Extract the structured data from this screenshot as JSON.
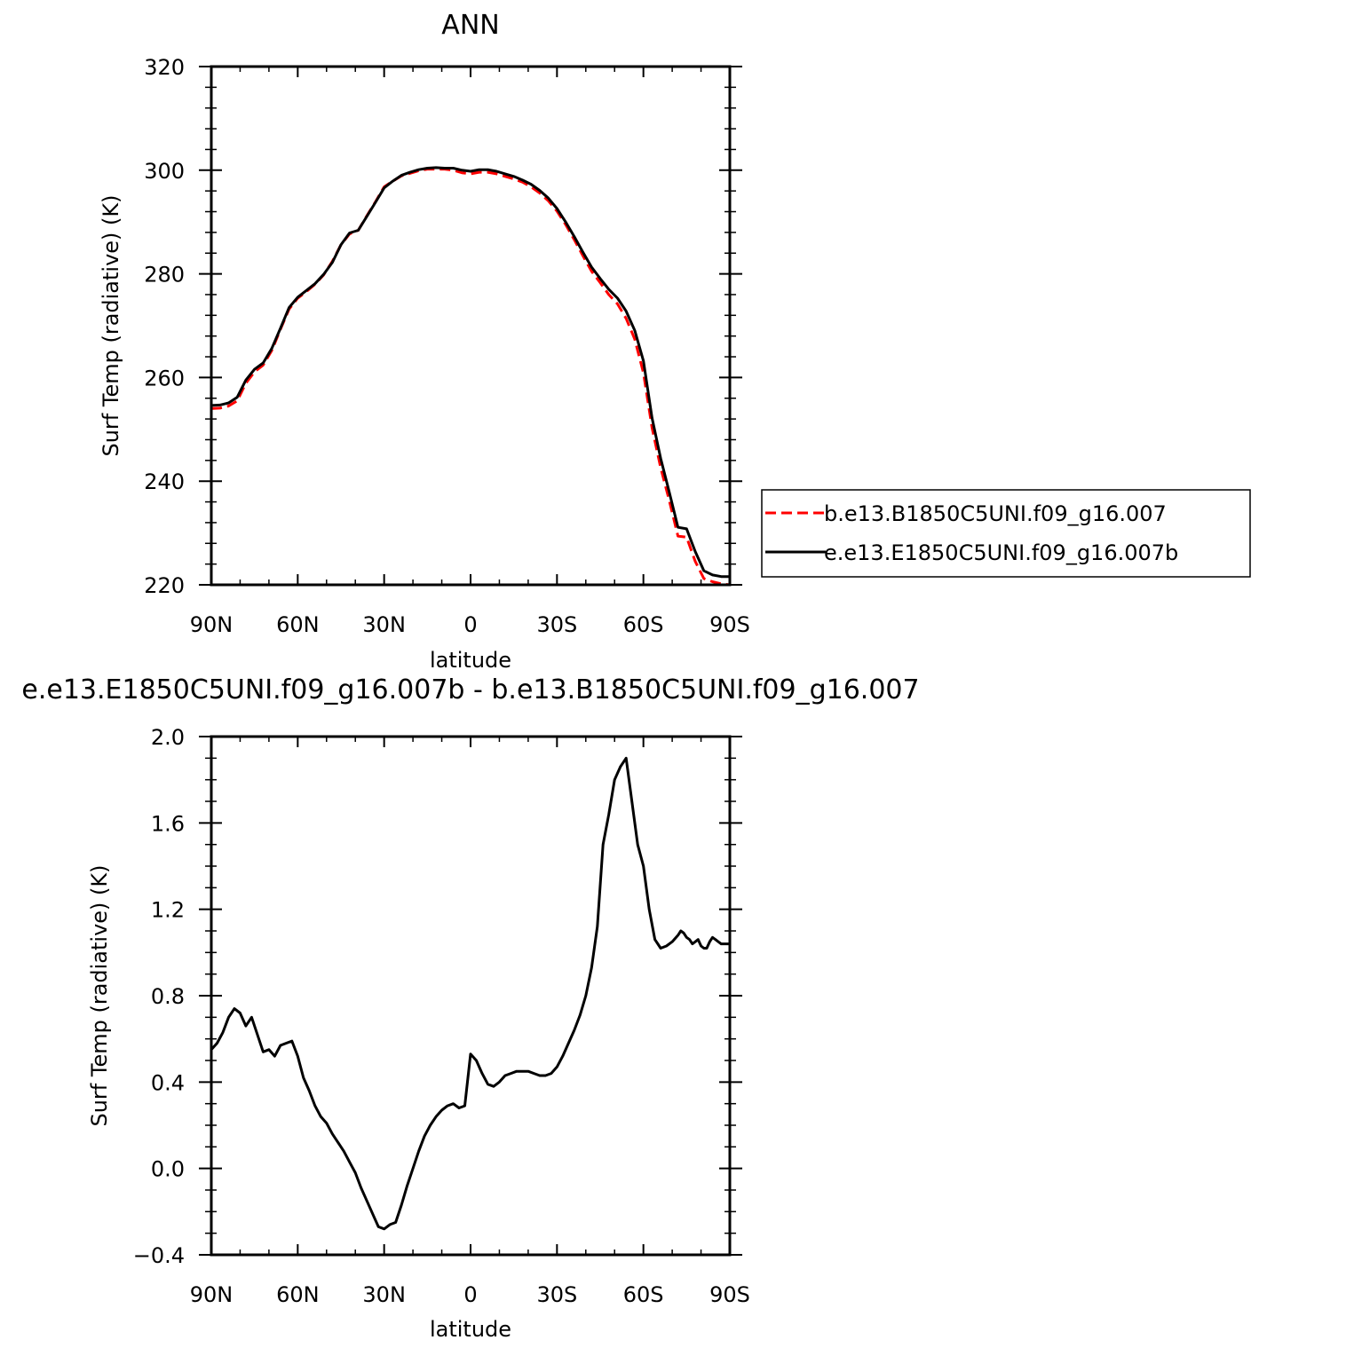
{
  "chart_data": [
    {
      "type": "line",
      "title": "ANN",
      "xlabel": "latitude",
      "ylabel": "Surf Temp (radiative) (K)",
      "xlim": [
        90,
        -90
      ],
      "ylim": [
        220,
        320
      ],
      "x_ticks": [
        {
          "value": 90,
          "label": "90N"
        },
        {
          "value": 60,
          "label": "60N"
        },
        {
          "value": 30,
          "label": "30N"
        },
        {
          "value": 0,
          "label": "0"
        },
        {
          "value": -30,
          "label": "30S"
        },
        {
          "value": -60,
          "label": "60S"
        },
        {
          "value": -90,
          "label": "90S"
        }
      ],
      "y_ticks": [
        {
          "value": 320,
          "label": "320"
        },
        {
          "value": 300,
          "label": "300"
        },
        {
          "value": 280,
          "label": "280"
        },
        {
          "value": 260,
          "label": "260"
        },
        {
          "value": 240,
          "label": "240"
        },
        {
          "value": 220,
          "label": "220"
        }
      ],
      "legend": {
        "placement": "right",
        "entries": [
          "b.e13.B1850C5UNI.f09_g16.007",
          "e.e13.E1850C5UNI.f09_g16.007b"
        ]
      },
      "series": [
        {
          "name": "b.e13.B1850C5UNI.f09_g16.007",
          "color": "#ff0000",
          "dash": "dashed",
          "x": [
            90,
            87,
            84,
            81,
            78,
            75,
            72,
            69,
            66,
            63,
            60,
            57,
            54,
            51,
            48,
            45,
            42,
            39,
            36,
            33,
            30,
            27,
            24,
            21,
            18,
            15,
            12,
            9,
            6,
            3,
            0,
            -3,
            -6,
            -9,
            -12,
            -15,
            -18,
            -21,
            -24,
            -27,
            -30,
            -33,
            -36,
            -39,
            -42,
            -45,
            -48,
            -51,
            -54,
            -57,
            -60,
            -63,
            -66,
            -69,
            -72,
            -75,
            -78,
            -81,
            -84,
            -87,
            -90
          ],
          "y": [
            254.0,
            254.1,
            254.5,
            255.5,
            258.9,
            261.1,
            262.4,
            265.2,
            269.3,
            273.2,
            275.3,
            276.6,
            278.0,
            279.8,
            282.4,
            285.6,
            287.7,
            288.4,
            291.2,
            293.9,
            296.8,
            297.9,
            298.9,
            299.4,
            299.9,
            300.2,
            300.2,
            300.2,
            300.0,
            299.5,
            299.3,
            299.6,
            299.6,
            299.3,
            298.8,
            298.3,
            297.7,
            296.8,
            295.6,
            294.1,
            292.1,
            289.5,
            286.6,
            283.5,
            280.5,
            278.3,
            276.0,
            274.2,
            271.4,
            267.4,
            260.9,
            250.3,
            242.6,
            236.2,
            229.4,
            229.2,
            224.5,
            221.2,
            220.6,
            220.2,
            220.0
          ]
        },
        {
          "name": "e.e13.E1850C5UNI.f09_g16.007b",
          "color": "#000000",
          "dash": "solid",
          "x": [
            90,
            87,
            84,
            81,
            78,
            75,
            72,
            69,
            66,
            63,
            60,
            57,
            54,
            51,
            48,
            45,
            42,
            39,
            36,
            33,
            30,
            27,
            24,
            21,
            18,
            15,
            12,
            9,
            6,
            3,
            0,
            -3,
            -6,
            -9,
            -12,
            -15,
            -18,
            -21,
            -24,
            -27,
            -30,
            -33,
            -36,
            -39,
            -42,
            -45,
            -48,
            -51,
            -54,
            -57,
            -60,
            -63,
            -66,
            -69,
            -72,
            -75,
            -78,
            -81,
            -84,
            -87,
            -90
          ],
          "y": [
            254.6,
            254.7,
            255.1,
            256.2,
            259.5,
            261.6,
            262.8,
            265.6,
            269.5,
            273.5,
            275.5,
            276.8,
            278.1,
            279.9,
            282.2,
            285.6,
            287.9,
            288.4,
            291.1,
            293.8,
            296.6,
            297.9,
            299.0,
            299.6,
            300.1,
            300.4,
            300.5,
            300.4,
            300.4,
            300.0,
            299.8,
            300.1,
            300.1,
            299.8,
            299.3,
            298.8,
            298.1,
            297.3,
            296.1,
            294.6,
            292.6,
            290.0,
            287.2,
            284.2,
            281.3,
            279.1,
            277.0,
            275.3,
            272.8,
            269.1,
            263.2,
            252.2,
            244.4,
            237.8,
            231.1,
            230.8,
            226.4,
            222.7,
            221.9,
            221.6,
            221.6
          ]
        }
      ]
    },
    {
      "type": "line",
      "title": "e.e13.E1850C5UNI.f09_g16.007b - b.e13.B1850C5UNI.f09_g16.007",
      "xlabel": "latitude",
      "ylabel": "Surf Temp (radiative) (K)",
      "xlim": [
        90,
        -90
      ],
      "ylim": [
        -0.4,
        2.0
      ],
      "x_ticks": [
        {
          "value": 90,
          "label": "90N"
        },
        {
          "value": 60,
          "label": "60N"
        },
        {
          "value": 30,
          "label": "30N"
        },
        {
          "value": 0,
          "label": "0"
        },
        {
          "value": -30,
          "label": "30S"
        },
        {
          "value": -60,
          "label": "60S"
        },
        {
          "value": -90,
          "label": "90S"
        }
      ],
      "y_ticks": [
        {
          "value": 2.0,
          "label": "2.0"
        },
        {
          "value": 1.6,
          "label": "1.6"
        },
        {
          "value": 1.2,
          "label": "1.2"
        },
        {
          "value": 0.8,
          "label": "0.8"
        },
        {
          "value": 0.4,
          "label": "0.4"
        },
        {
          "value": 0.0,
          "label": "0.0"
        },
        {
          "value": -0.4,
          "label": "−0.4"
        }
      ],
      "series": [
        {
          "color": "#000000",
          "dash": "solid",
          "x": [
            90,
            88,
            86,
            84,
            82,
            80,
            78,
            76,
            74,
            72,
            70,
            68,
            66,
            64,
            62,
            60,
            58,
            56,
            54,
            52,
            50,
            48,
            46,
            44,
            42,
            40,
            38,
            36,
            34,
            32,
            30,
            28,
            26,
            24,
            22,
            20,
            18,
            16,
            14,
            12,
            10,
            8,
            6,
            4,
            2,
            0,
            -2,
            -4,
            -6,
            -8,
            -10,
            -12,
            -14,
            -16,
            -18,
            -20,
            -22,
            -24,
            -26,
            -28,
            -30,
            -32,
            -34,
            -36,
            -38,
            -40,
            -42,
            -44,
            -46,
            -48,
            -50,
            -52,
            -54,
            -56,
            -58,
            -60,
            -62,
            -64,
            -65,
            -66,
            -68,
            -70,
            -72,
            -73,
            -74,
            -75,
            -76,
            -77,
            -78,
            -79,
            -80,
            -81,
            -82,
            -83,
            -84,
            -85,
            -86,
            -87,
            -88,
            -89,
            -90
          ],
          "y": [
            0.55,
            0.58,
            0.63,
            0.7,
            0.74,
            0.72,
            0.66,
            0.7,
            0.62,
            0.54,
            0.55,
            0.52,
            0.57,
            0.58,
            0.59,
            0.52,
            0.42,
            0.36,
            0.29,
            0.24,
            0.21,
            0.16,
            0.12,
            0.08,
            0.03,
            -0.02,
            -0.09,
            -0.15,
            -0.21,
            -0.27,
            -0.28,
            -0.26,
            -0.25,
            -0.17,
            -0.08,
            0.0,
            0.08,
            0.15,
            0.2,
            0.24,
            0.27,
            0.29,
            0.3,
            0.28,
            0.29,
            0.53,
            0.5,
            0.44,
            0.39,
            0.38,
            0.4,
            0.43,
            0.44,
            0.45,
            0.45,
            0.45,
            0.44,
            0.43,
            0.43,
            0.44,
            0.47,
            0.52,
            0.58,
            0.64,
            0.71,
            0.8,
            0.93,
            1.12,
            1.5,
            1.64,
            1.8,
            1.86,
            1.9,
            1.7,
            1.5,
            1.4,
            1.2,
            1.06,
            1.04,
            1.02,
            1.03,
            1.05,
            1.08,
            1.1,
            1.09,
            1.07,
            1.06,
            1.04,
            1.05,
            1.06,
            1.03,
            1.02,
            1.02,
            1.05,
            1.07,
            1.06,
            1.05,
            1.04,
            1.04,
            1.04,
            1.04
          ]
        }
      ]
    }
  ]
}
